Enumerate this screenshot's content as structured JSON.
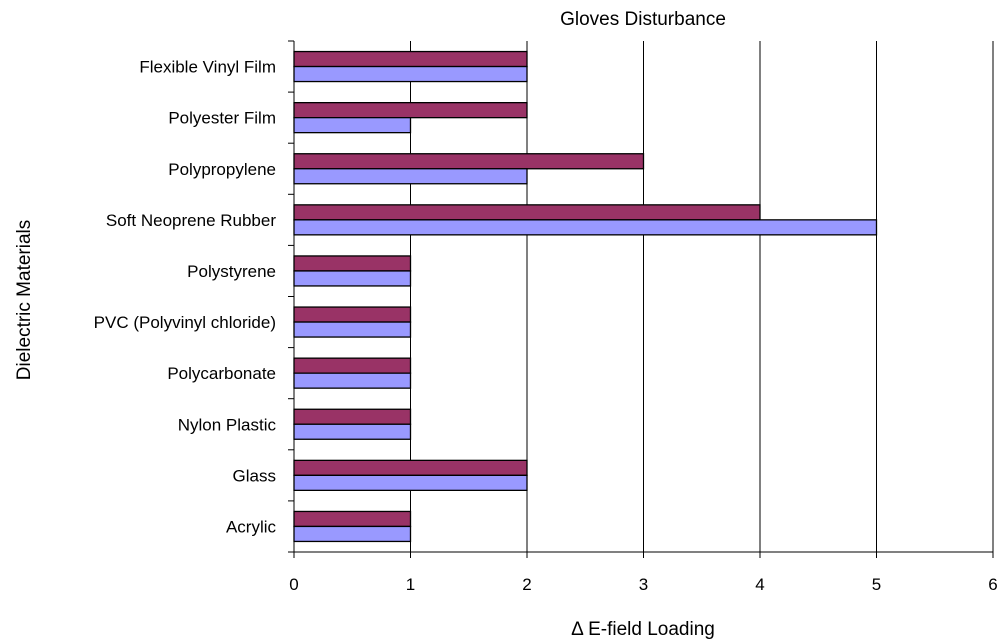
{
  "chart_data": {
    "type": "bar",
    "orientation": "horizontal",
    "title": "Gloves Disturbance",
    "xlabel": "Δ E-field Loading",
    "ylabel": "Dielectric Materials",
    "xlim": [
      0,
      6
    ],
    "xticks": [
      "0",
      "1",
      "2",
      "3",
      "4",
      "5",
      "6"
    ],
    "grid": "vertical",
    "categories": [
      "Flexible Vinyl Film",
      "Polyester Film",
      "Polypropylene",
      "Soft Neoprene Rubber",
      "Polystyrene",
      "PVC (Polyvinyl chloride)",
      "Polycarbonate",
      "Nylon Plastic",
      "Glass",
      "Acrylic"
    ],
    "series": [
      {
        "color": "#993366",
        "values": [
          2,
          2,
          3,
          4,
          1,
          1,
          1,
          1,
          2,
          1
        ]
      },
      {
        "color": "#9999FF",
        "values": [
          2,
          1,
          2,
          5,
          1,
          1,
          1,
          1,
          2,
          1
        ]
      }
    ]
  }
}
